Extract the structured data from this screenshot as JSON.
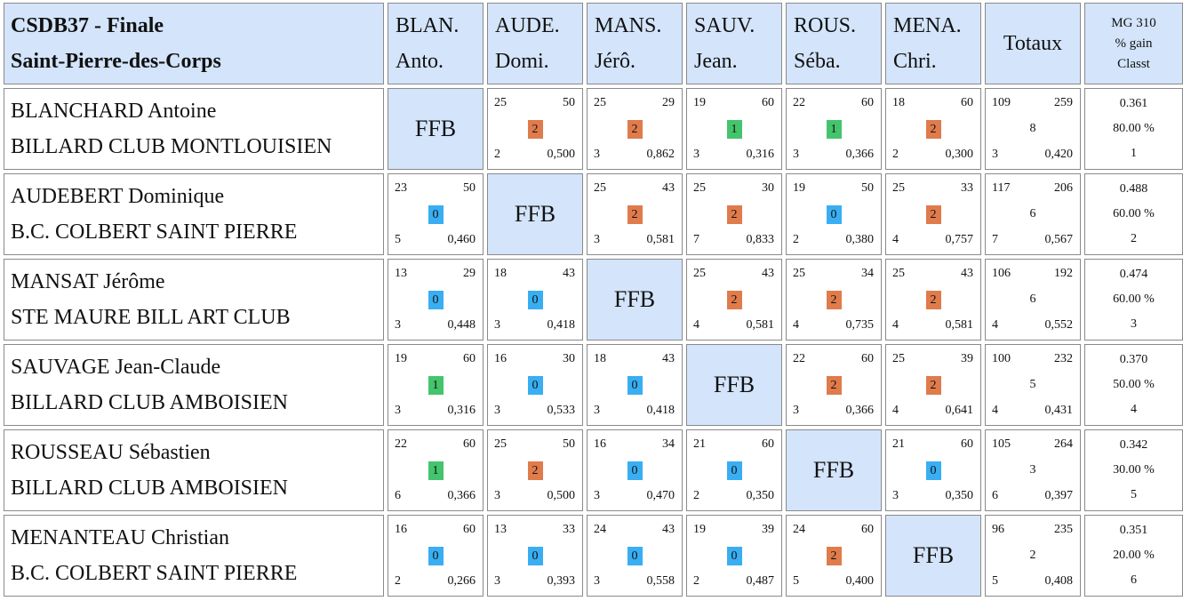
{
  "header": {
    "title_line1": "CSDB37 - Finale",
    "title_line2": "Saint-Pierre-des-Corps",
    "columns": [
      {
        "l1": "BLAN.",
        "l2": "Anto."
      },
      {
        "l1": "AUDE.",
        "l2": "Domi."
      },
      {
        "l1": "MANS.",
        "l2": "Jérô."
      },
      {
        "l1": "SAUV.",
        "l2": "Jean."
      },
      {
        "l1": "ROUS.",
        "l2": "Séba."
      },
      {
        "l1": "MENA.",
        "l2": "Chri."
      }
    ],
    "totals_label": "Totaux",
    "mg_line1": "MG 310",
    "mg_line2": "% gain",
    "mg_line3": "Classt"
  },
  "ffb_label": "FFB",
  "badge_colors": {
    "2": "#e07b4c",
    "1": "#44c46d",
    "0": "#39aef2"
  },
  "players": [
    {
      "name": "BLANCHARD Antoine",
      "club": "BILLARD CLUB MONTLOUISIEN",
      "matches": [
        null,
        {
          "pts": "25",
          "rep": "50",
          "res": "2",
          "ser": "2",
          "moy": "0,500"
        },
        {
          "pts": "25",
          "rep": "29",
          "res": "2",
          "ser": "3",
          "moy": "0,862"
        },
        {
          "pts": "19",
          "rep": "60",
          "res": "1",
          "ser": "3",
          "moy": "0,316"
        },
        {
          "pts": "22",
          "rep": "60",
          "res": "1",
          "ser": "3",
          "moy": "0,366"
        },
        {
          "pts": "18",
          "rep": "60",
          "res": "2",
          "ser": "2",
          "moy": "0,300"
        }
      ],
      "totals": {
        "pts": "109",
        "rep": "259",
        "mp": "8",
        "ser": "3",
        "moy": "0,420"
      },
      "mg": {
        "mg": "0.361",
        "pct": "80.00 %",
        "rank": "1"
      }
    },
    {
      "name": "AUDEBERT Dominique",
      "club": "B.C. COLBERT SAINT PIERRE",
      "matches": [
        {
          "pts": "23",
          "rep": "50",
          "res": "0",
          "ser": "5",
          "moy": "0,460"
        },
        null,
        {
          "pts": "25",
          "rep": "43",
          "res": "2",
          "ser": "3",
          "moy": "0,581"
        },
        {
          "pts": "25",
          "rep": "30",
          "res": "2",
          "ser": "7",
          "moy": "0,833"
        },
        {
          "pts": "19",
          "rep": "50",
          "res": "0",
          "ser": "2",
          "moy": "0,380"
        },
        {
          "pts": "25",
          "rep": "33",
          "res": "2",
          "ser": "4",
          "moy": "0,757"
        }
      ],
      "totals": {
        "pts": "117",
        "rep": "206",
        "mp": "6",
        "ser": "7",
        "moy": "0,567"
      },
      "mg": {
        "mg": "0.488",
        "pct": "60.00 %",
        "rank": "2"
      }
    },
    {
      "name": "MANSAT Jérôme",
      "club": "STE MAURE BILL ART CLUB",
      "matches": [
        {
          "pts": "13",
          "rep": "29",
          "res": "0",
          "ser": "3",
          "moy": "0,448"
        },
        {
          "pts": "18",
          "rep": "43",
          "res": "0",
          "ser": "3",
          "moy": "0,418"
        },
        null,
        {
          "pts": "25",
          "rep": "43",
          "res": "2",
          "ser": "4",
          "moy": "0,581"
        },
        {
          "pts": "25",
          "rep": "34",
          "res": "2",
          "ser": "4",
          "moy": "0,735"
        },
        {
          "pts": "25",
          "rep": "43",
          "res": "2",
          "ser": "4",
          "moy": "0,581"
        }
      ],
      "totals": {
        "pts": "106",
        "rep": "192",
        "mp": "6",
        "ser": "4",
        "moy": "0,552"
      },
      "mg": {
        "mg": "0.474",
        "pct": "60.00 %",
        "rank": "3"
      }
    },
    {
      "name": "SAUVAGE Jean-Claude",
      "club": "BILLARD CLUB AMBOISIEN",
      "matches": [
        {
          "pts": "19",
          "rep": "60",
          "res": "1",
          "ser": "3",
          "moy": "0,316"
        },
        {
          "pts": "16",
          "rep": "30",
          "res": "0",
          "ser": "3",
          "moy": "0,533"
        },
        {
          "pts": "18",
          "rep": "43",
          "res": "0",
          "ser": "3",
          "moy": "0,418"
        },
        null,
        {
          "pts": "22",
          "rep": "60",
          "res": "2",
          "ser": "3",
          "moy": "0,366"
        },
        {
          "pts": "25",
          "rep": "39",
          "res": "2",
          "ser": "4",
          "moy": "0,641"
        }
      ],
      "totals": {
        "pts": "100",
        "rep": "232",
        "mp": "5",
        "ser": "4",
        "moy": "0,431"
      },
      "mg": {
        "mg": "0.370",
        "pct": "50.00 %",
        "rank": "4"
      }
    },
    {
      "name": "ROUSSEAU Sébastien",
      "club": "BILLARD CLUB AMBOISIEN",
      "matches": [
        {
          "pts": "22",
          "rep": "60",
          "res": "1",
          "ser": "6",
          "moy": "0,366"
        },
        {
          "pts": "25",
          "rep": "50",
          "res": "2",
          "ser": "3",
          "moy": "0,500"
        },
        {
          "pts": "16",
          "rep": "34",
          "res": "0",
          "ser": "3",
          "moy": "0,470"
        },
        {
          "pts": "21",
          "rep": "60",
          "res": "0",
          "ser": "2",
          "moy": "0,350"
        },
        null,
        {
          "pts": "21",
          "rep": "60",
          "res": "0",
          "ser": "3",
          "moy": "0,350"
        }
      ],
      "totals": {
        "pts": "105",
        "rep": "264",
        "mp": "3",
        "ser": "6",
        "moy": "0,397"
      },
      "mg": {
        "mg": "0.342",
        "pct": "30.00 %",
        "rank": "5"
      }
    },
    {
      "name": "MENANTEAU Christian",
      "club": "B.C. COLBERT SAINT PIERRE",
      "matches": [
        {
          "pts": "16",
          "rep": "60",
          "res": "0",
          "ser": "2",
          "moy": "0,266"
        },
        {
          "pts": "13",
          "rep": "33",
          "res": "0",
          "ser": "3",
          "moy": "0,393"
        },
        {
          "pts": "24",
          "rep": "43",
          "res": "0",
          "ser": "3",
          "moy": "0,558"
        },
        {
          "pts": "19",
          "rep": "39",
          "res": "0",
          "ser": "2",
          "moy": "0,487"
        },
        {
          "pts": "24",
          "rep": "60",
          "res": "2",
          "ser": "5",
          "moy": "0,400"
        },
        null
      ],
      "totals": {
        "pts": "96",
        "rep": "235",
        "mp": "2",
        "ser": "5",
        "moy": "0,408"
      },
      "mg": {
        "mg": "0.351",
        "pct": "20.00 %",
        "rank": "6"
      }
    }
  ]
}
